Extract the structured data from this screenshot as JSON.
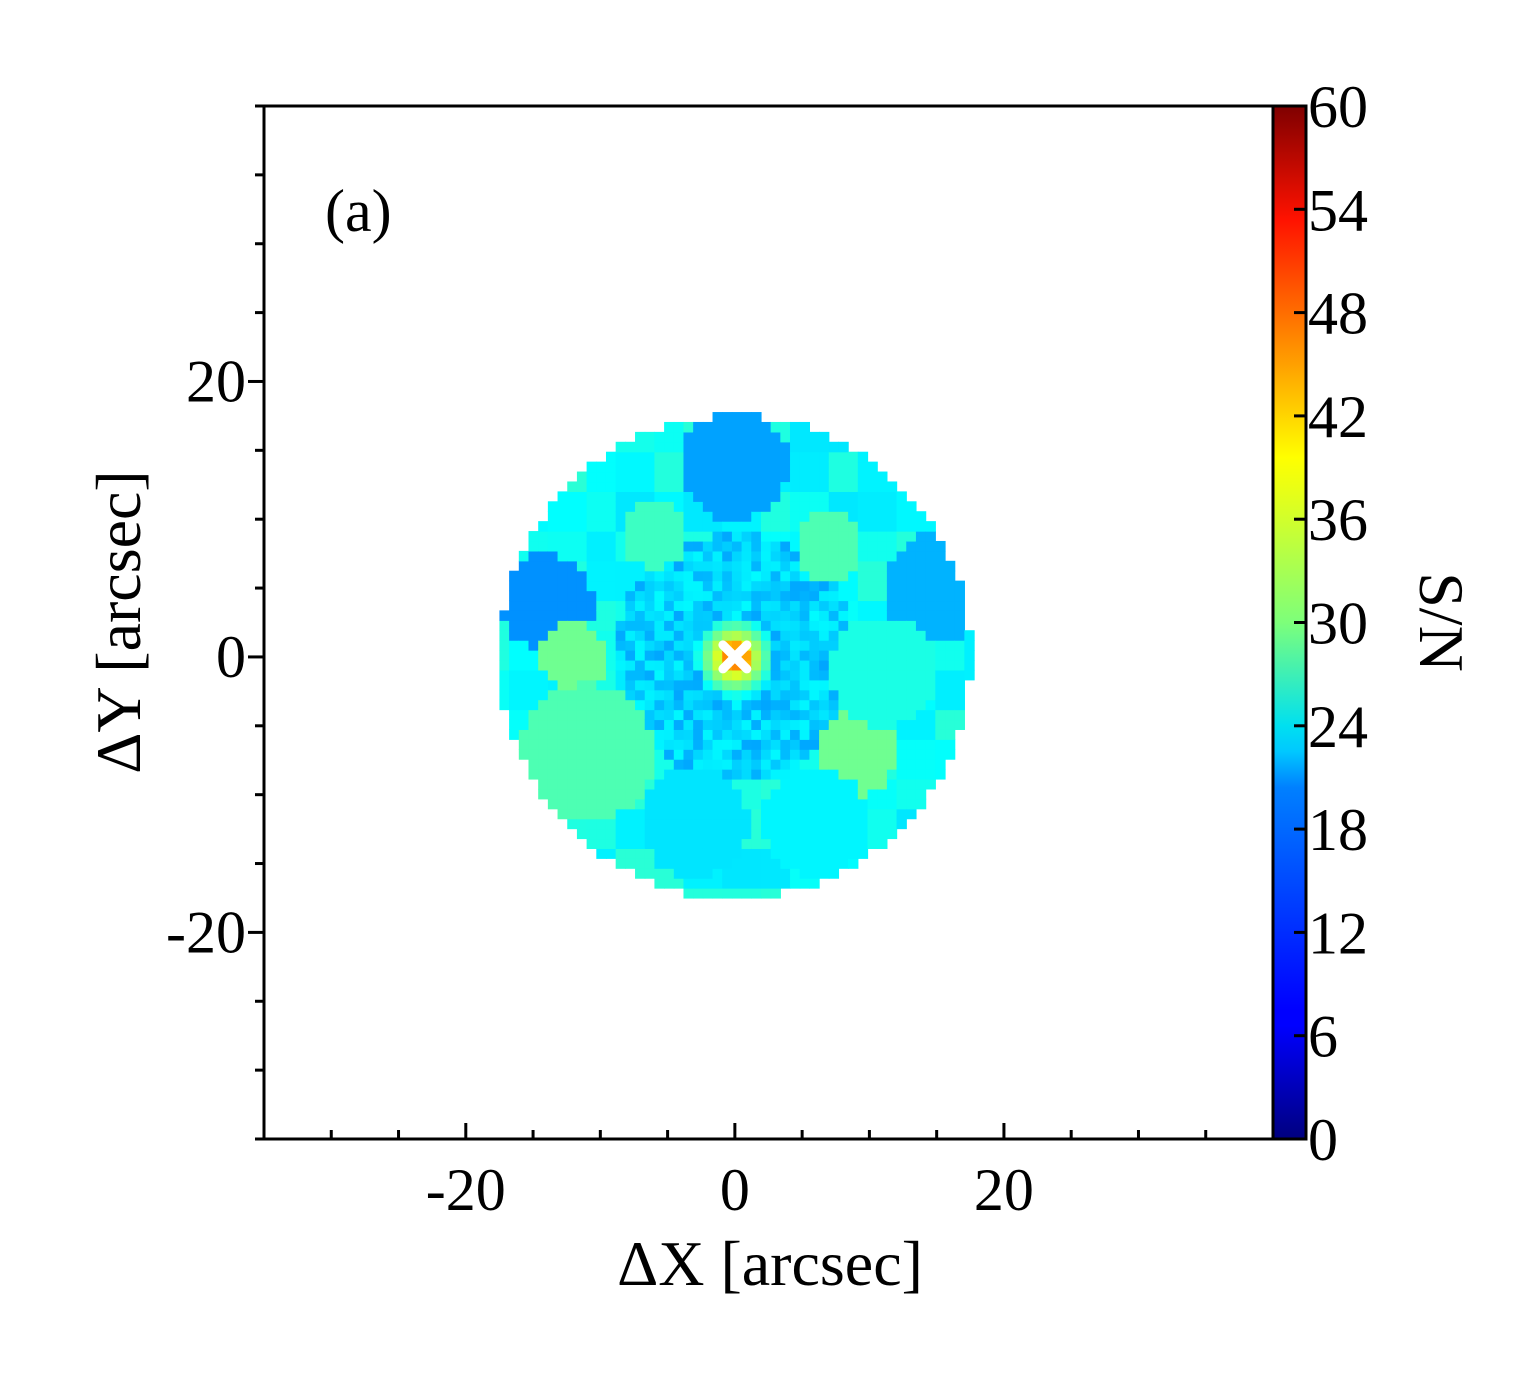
{
  "chart_data": {
    "type": "heatmap",
    "panel_label": "(a)",
    "xlabel": "ΔX [arcsec]",
    "ylabel": "ΔY [arcsec]",
    "xlim": [
      -35,
      40
    ],
    "ylim": [
      -35,
      40
    ],
    "x_ticks": [
      -20,
      0,
      20
    ],
    "y_ticks": [
      20,
      0,
      -20
    ],
    "x_tick_labels": [
      "-20",
      "0",
      "20"
    ],
    "y_tick_labels": [
      "20",
      "0",
      "-20"
    ],
    "minor_tick_step": 5,
    "colorbar": {
      "label": "S/N",
      "min": 0,
      "max": 60,
      "ticks": [
        0,
        6,
        12,
        18,
        24,
        30,
        36,
        42,
        48,
        54,
        60
      ],
      "tick_labels": [
        "0",
        "6",
        "12",
        "18",
        "24",
        "30",
        "36",
        "42",
        "48",
        "54",
        "60"
      ],
      "colormap": "jet"
    },
    "field": {
      "center": [
        0,
        0
      ],
      "radius_arcsec": 17.5,
      "center_peak_value": 48,
      "core_value": 20,
      "outer_ring_value": 23
    },
    "marker": {
      "x": 0,
      "y": 0,
      "symbol": "x",
      "color": "#ffffff"
    },
    "regions": [
      {
        "x": -14,
        "y": 4,
        "r": 3.5,
        "value": 16
      },
      {
        "x": 0,
        "y": 14,
        "r": 4,
        "value": 17
      },
      {
        "x": 15,
        "y": 5,
        "r": 4,
        "value": 18
      },
      {
        "x": -12,
        "y": 0,
        "r": 2.5,
        "value": 29
      },
      {
        "x": -11,
        "y": -7,
        "r": 5,
        "value": 27
      },
      {
        "x": 9,
        "y": -7,
        "r": 3,
        "value": 29
      },
      {
        "x": 7,
        "y": 8,
        "r": 2.5,
        "value": 27
      },
      {
        "x": -6,
        "y": 9,
        "r": 2.5,
        "value": 26
      },
      {
        "x": 11,
        "y": -1,
        "r": 4,
        "value": 24
      },
      {
        "x": -3,
        "y": -12,
        "r": 4,
        "value": 21
      },
      {
        "x": 6,
        "y": -12,
        "r": 4,
        "value": 22
      }
    ]
  }
}
